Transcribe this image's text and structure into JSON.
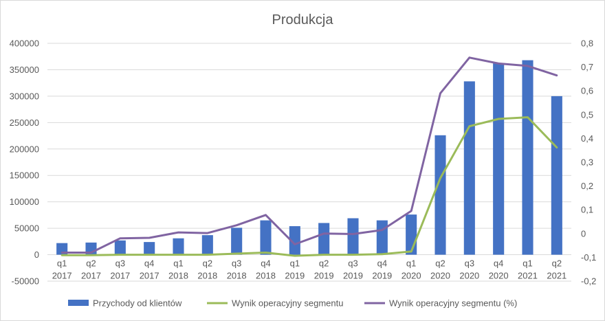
{
  "chart_data": {
    "type": "bar",
    "title": "Produkcja",
    "categories": [
      [
        "q1",
        "2017"
      ],
      [
        "q2",
        "2017"
      ],
      [
        "q3",
        "2017"
      ],
      [
        "q4",
        "2017"
      ],
      [
        "q1",
        "2018"
      ],
      [
        "q2",
        "2018"
      ],
      [
        "q3",
        "2018"
      ],
      [
        "q4",
        "2018"
      ],
      [
        "q1",
        "2019"
      ],
      [
        "q2",
        "2019"
      ],
      [
        "q3",
        "2019"
      ],
      [
        "q4",
        "2019"
      ],
      [
        "q1",
        "2020"
      ],
      [
        "q2",
        "2020"
      ],
      [
        "q3",
        "2020"
      ],
      [
        "q4",
        "2020"
      ],
      [
        "q1",
        "2021"
      ],
      [
        "q2",
        "2021"
      ]
    ],
    "y_left": {
      "ylim": [
        -50000,
        400000
      ],
      "ticks": [
        "-50000",
        "0",
        "50000",
        "100000",
        "150000",
        "200000",
        "250000",
        "300000",
        "350000",
        "400000"
      ],
      "tick_values": [
        -50000,
        0,
        50000,
        100000,
        150000,
        200000,
        250000,
        300000,
        350000,
        400000
      ]
    },
    "y_right": {
      "ylim": [
        -0.2,
        0.8
      ],
      "ticks": [
        "-0,2",
        "-0,1",
        "0",
        "0,1",
        "0,2",
        "0,3",
        "0,4",
        "0,5",
        "0,6",
        "0,7",
        "0,8"
      ],
      "tick_values": [
        -0.2,
        -0.1,
        0,
        0.1,
        0.2,
        0.3,
        0.4,
        0.5,
        0.6,
        0.7,
        0.8
      ]
    },
    "grid": true,
    "legend_position": "bottom",
    "series": [
      {
        "name": "Przychody od klientów",
        "type": "bar",
        "axis": "left",
        "color": "#4472c4",
        "values": [
          22000,
          23000,
          27000,
          24000,
          31000,
          37000,
          51000,
          65000,
          54000,
          60000,
          69000,
          65000,
          76000,
          226000,
          328000,
          362000,
          368000,
          300000
        ]
      },
      {
        "name": "Wynik operacyjny segmentu",
        "type": "line",
        "axis": "left",
        "color": "#9bbb59",
        "values": [
          -1000,
          -1000,
          0,
          0,
          0,
          0,
          2000,
          4000,
          -2000,
          0,
          0,
          1000,
          6000,
          145000,
          243000,
          257000,
          260000,
          203000
        ]
      },
      {
        "name": "Wynik operacyjny segmentu (%)",
        "type": "line",
        "axis": "right",
        "color": "#8064a2",
        "values": [
          -0.08,
          -0.08,
          -0.02,
          -0.018,
          0.005,
          0.002,
          0.035,
          0.078,
          -0.045,
          0.0,
          -0.002,
          0.015,
          0.095,
          0.59,
          0.74,
          0.715,
          0.705,
          0.665
        ]
      }
    ]
  }
}
